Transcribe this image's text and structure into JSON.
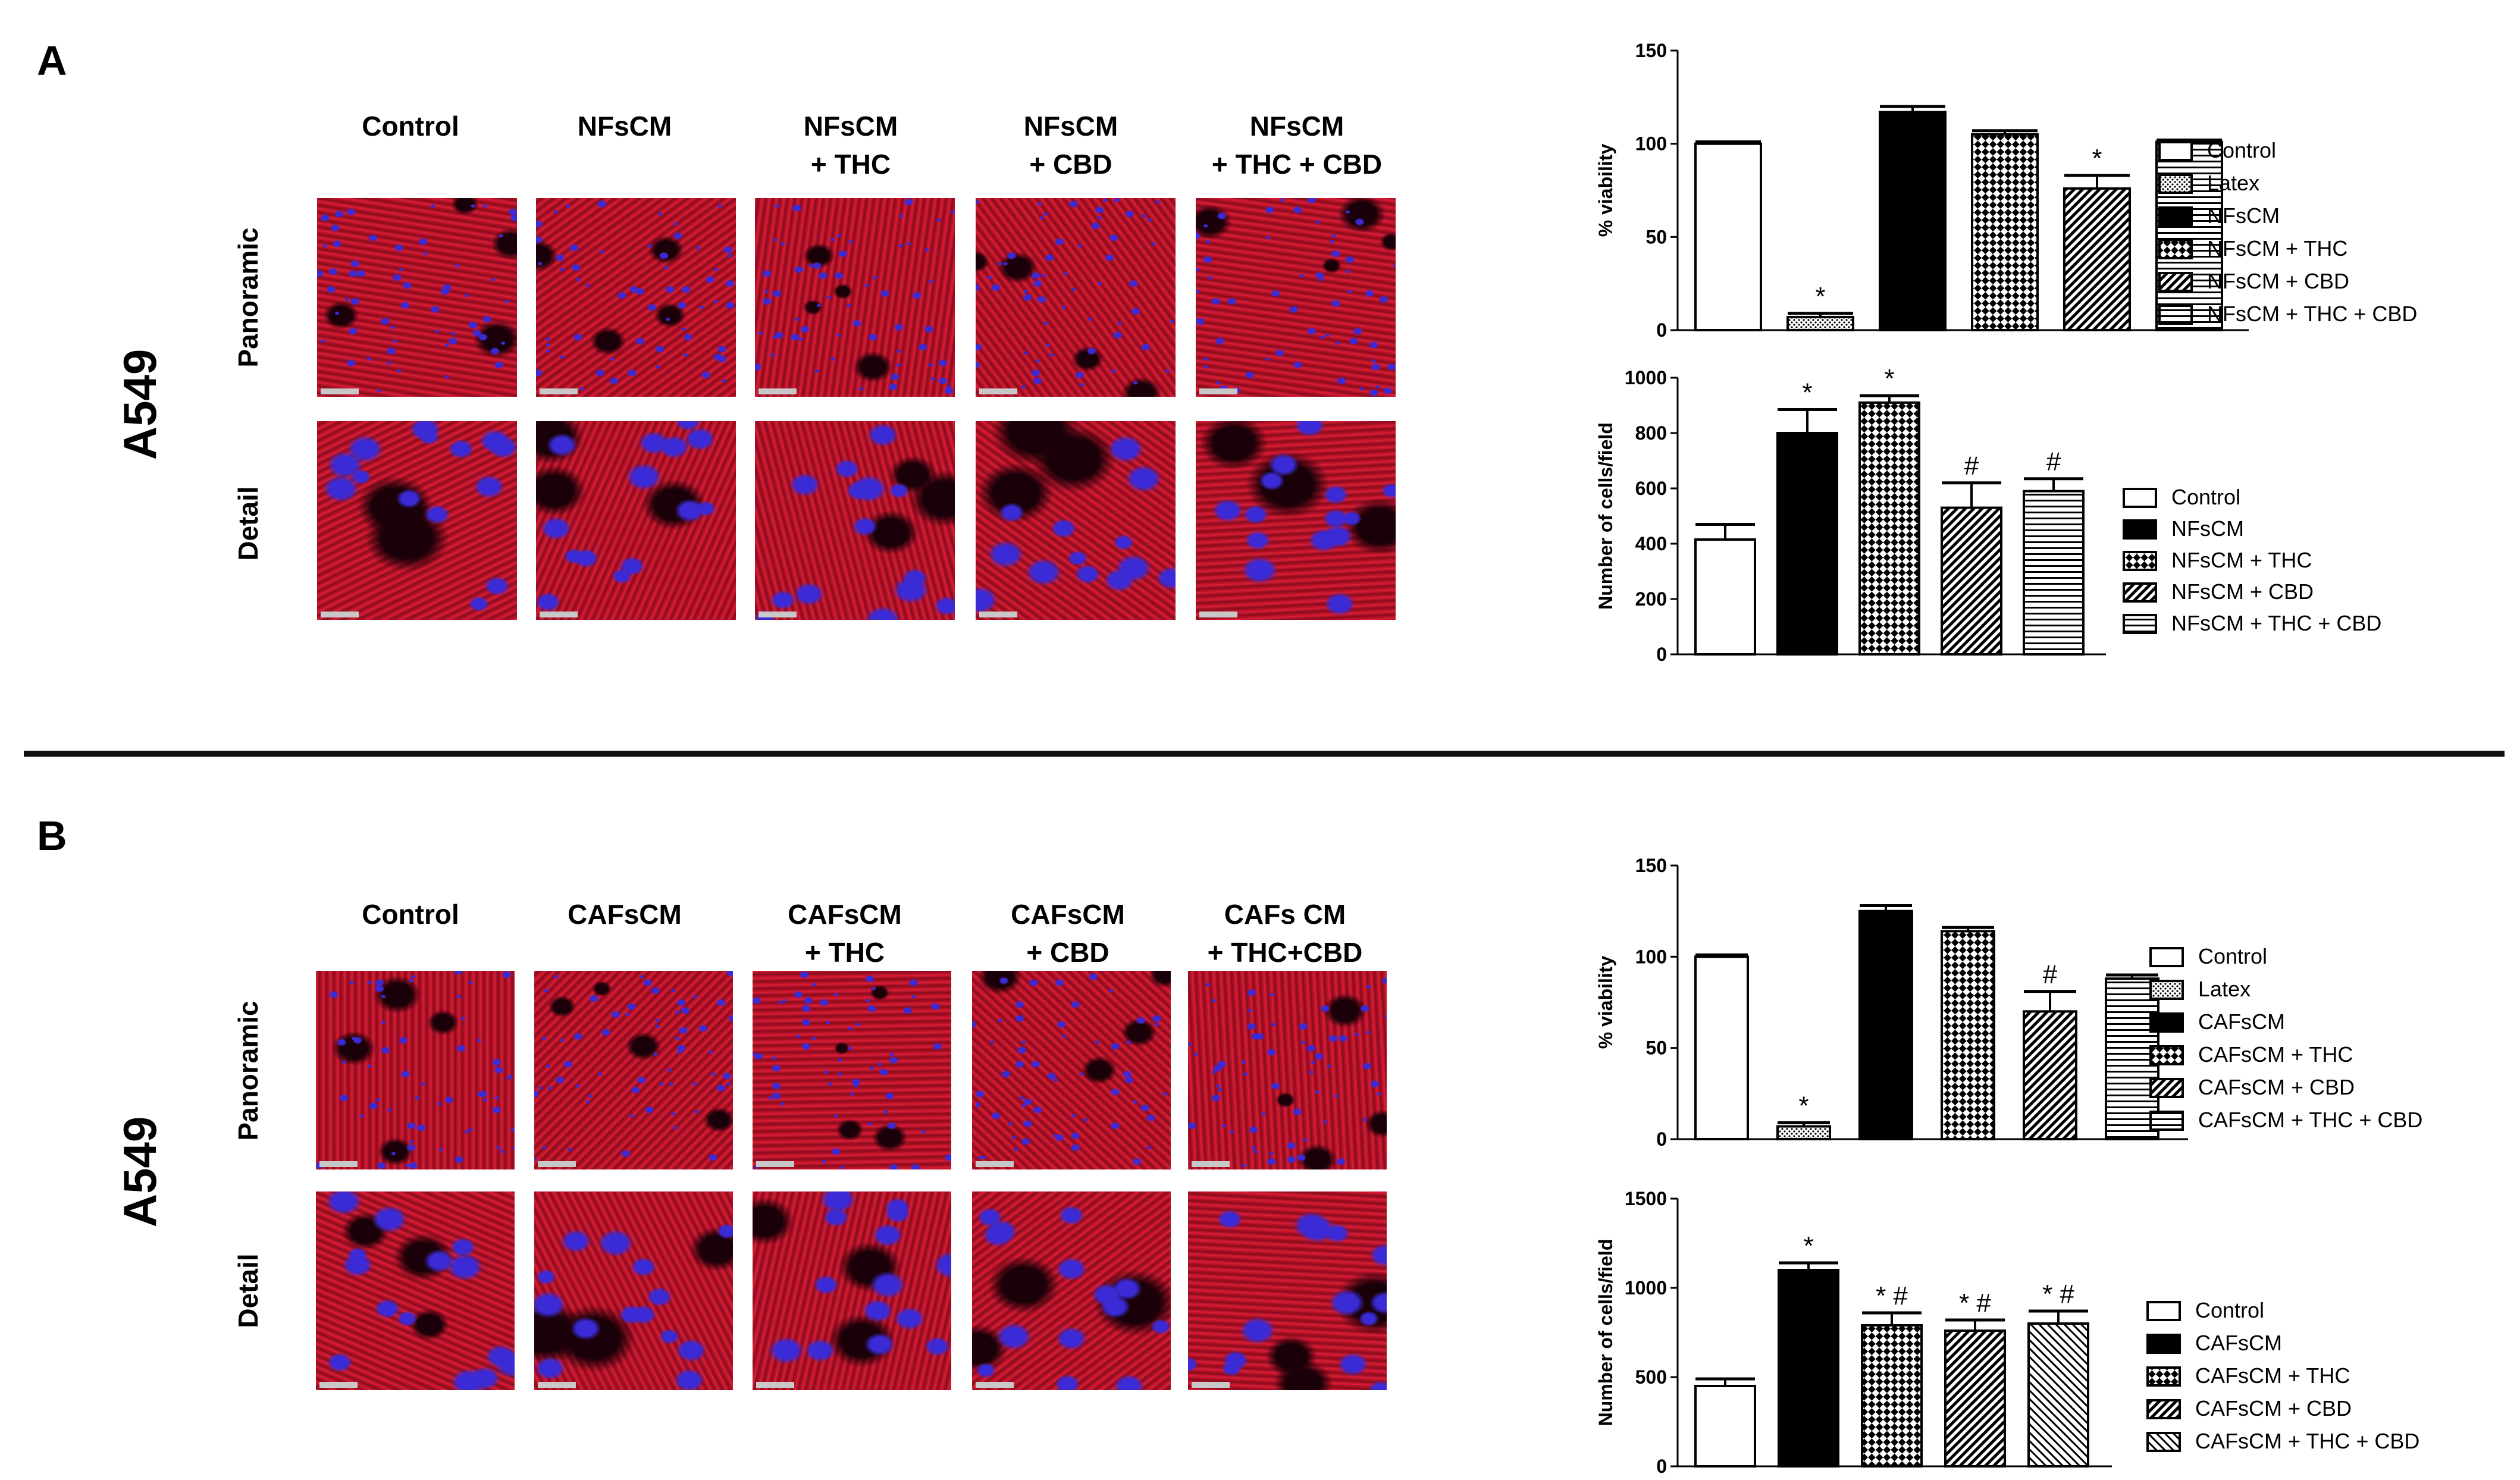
{
  "panels": [
    {
      "letter": "A",
      "cell_line": "A549",
      "row_labels": [
        "Panoramic",
        "Detail"
      ],
      "columns": [
        "Control",
        "NFsCM",
        "NFsCM\n+ THC",
        "NFsCM\n+ CBD",
        "NFsCM\n+ THC + CBD"
      ]
    },
    {
      "letter": "B",
      "cell_line": "A549",
      "row_labels": [
        "Panoramic",
        "Detail"
      ],
      "columns": [
        "Control",
        "CAFsCM",
        "CAFsCM\n+ THC",
        "CAFsCM\n+ CBD",
        "CAFs CM\n+ THC+CBD"
      ]
    }
  ],
  "micro_colors": {
    "red": "#c8102e",
    "dark": "#1a0008",
    "blue": "#3a2bd6"
  },
  "chart_data": [
    {
      "type": "bar",
      "ylabel": "% viability",
      "ylim": [
        0,
        150
      ],
      "yticks": [
        0,
        50,
        100,
        150
      ],
      "categories": [
        "Control",
        "Latex",
        "NFsCM",
        "NFsCM + THC",
        "NFsCM + CBD",
        "NFsCM + THC + CBD"
      ],
      "values": [
        100,
        7,
        117,
        105,
        76,
        101
      ],
      "errors": [
        1,
        2,
        3,
        2,
        7,
        1
      ],
      "annotations": [
        "",
        "*",
        "",
        "",
        "*",
        ""
      ],
      "patterns": [
        "white",
        "dots",
        "black",
        "checker",
        "diag",
        "horiz"
      ],
      "legend": [
        "Control",
        "Latex",
        "NFsCM",
        "NFsCM + THC",
        "NFsCM + CBD",
        "NFsCM + THC + CBD"
      ]
    },
    {
      "type": "bar",
      "ylabel": "Number of cells/field",
      "ylim": [
        0,
        1000
      ],
      "yticks": [
        0,
        200,
        400,
        600,
        800,
        1000
      ],
      "categories": [
        "Control",
        "NFsCM",
        "NFsCM + THC",
        "NFsCM + CBD",
        "NFsCM + THC + CBD"
      ],
      "values": [
        415,
        800,
        910,
        530,
        590
      ],
      "errors": [
        55,
        85,
        25,
        90,
        45
      ],
      "annotations": [
        "",
        "*",
        "*",
        "#",
        "#"
      ],
      "patterns": [
        "white",
        "black",
        "checker",
        "diag",
        "horiz"
      ],
      "legend": [
        "Control",
        "NFsCM",
        "NFsCM + THC",
        "NFsCM + CBD",
        "NFsCM + THC + CBD"
      ]
    },
    {
      "type": "bar",
      "ylabel": "% viability",
      "ylim": [
        0,
        150
      ],
      "yticks": [
        0,
        50,
        100,
        150
      ],
      "categories": [
        "Control",
        "Latex",
        "CAFsCM",
        "CAFsCM + THC",
        "CAFsCM + CBD",
        "CAFsCM + THC + CBD"
      ],
      "values": [
        100,
        7,
        125,
        114,
        70,
        88
      ],
      "errors": [
        1,
        2,
        3,
        2,
        11,
        2
      ],
      "annotations": [
        "",
        "*",
        "",
        "",
        "#",
        ""
      ],
      "patterns": [
        "white",
        "dots",
        "black",
        "checker",
        "diag",
        "horiz"
      ],
      "legend": [
        "Control",
        "Latex",
        "CAFsCM",
        "CAFsCM + THC",
        "CAFsCM + CBD",
        "CAFsCM + THC + CBD"
      ]
    },
    {
      "type": "bar",
      "ylabel": "Number of cells/field",
      "ylim": [
        0,
        1500
      ],
      "yticks": [
        0,
        500,
        1000,
        1500
      ],
      "categories": [
        "Control",
        "CAFsCM",
        "CAFsCM + THC",
        "CAFsCM + CBD",
        "CAFsCM + THC + CBD"
      ],
      "values": [
        450,
        1100,
        790,
        760,
        800
      ],
      "errors": [
        40,
        40,
        70,
        60,
        70
      ],
      "annotations": [
        "",
        "*",
        "* #",
        "* #",
        "* #"
      ],
      "patterns": [
        "white",
        "black",
        "checker",
        "diag",
        "diag2"
      ],
      "legend": [
        "Control",
        "CAFsCM",
        "CAFsCM + THC",
        "CAFsCM + CBD",
        "CAFsCM + THC + CBD"
      ]
    }
  ]
}
